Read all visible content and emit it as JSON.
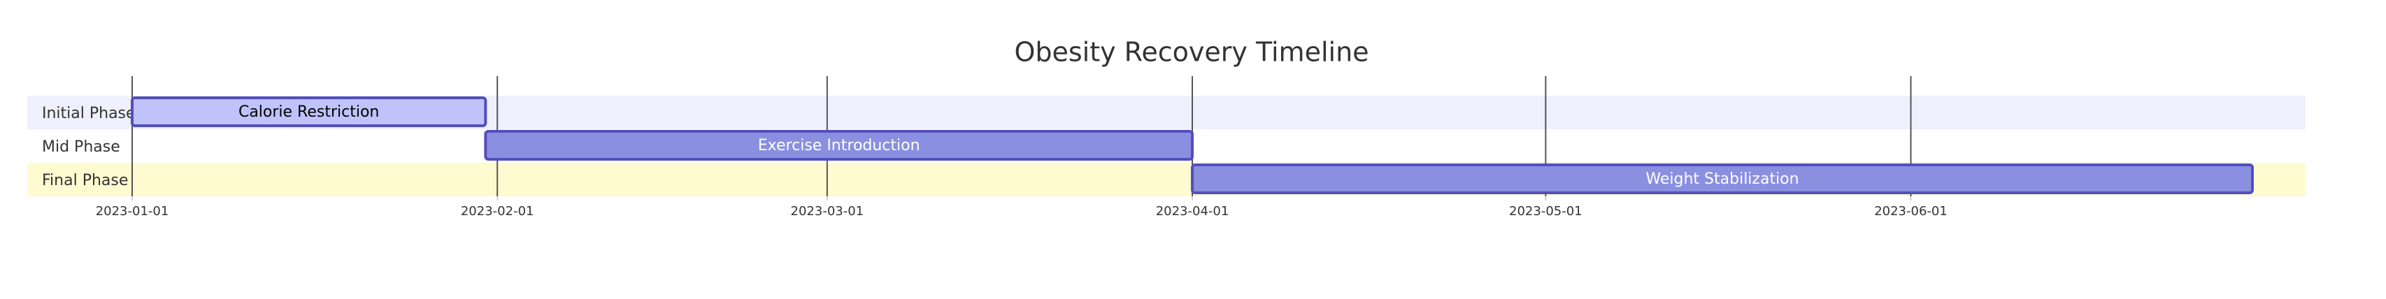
{
  "chart_data": {
    "type": "gantt",
    "title": "Obesity Recovery Timeline",
    "sections": [
      {
        "name": "Initial Phase",
        "color": "#efeffd"
      },
      {
        "name": "Mid Phase",
        "color": "#ffffff"
      },
      {
        "name": "Final Phase",
        "color": "#fffbd1"
      }
    ],
    "tasks": [
      {
        "name": "Calorie Restriction",
        "section": 0,
        "start": "2023-01-01",
        "end": "2023-01-31",
        "color": "#bfc3fa",
        "text_color": "#000000"
      },
      {
        "name": "Exercise Introduction",
        "section": 1,
        "start": "2023-01-31",
        "end": "2023-04-01",
        "color": "#8a8fe0",
        "text_color": "#ffffff"
      },
      {
        "name": "Weight Stabilization",
        "section": 2,
        "start": "2023-04-01",
        "end": "2023-06-30",
        "color": "#8a8fe0",
        "text_color": "#ffffff"
      }
    ],
    "xlim": [
      "2023-01-01",
      "2023-06-30"
    ],
    "xticks": [
      "2023-01-01",
      "2023-02-01",
      "2023-03-01",
      "2023-04-01",
      "2023-05-01",
      "2023-06-01"
    ],
    "grid": true
  }
}
